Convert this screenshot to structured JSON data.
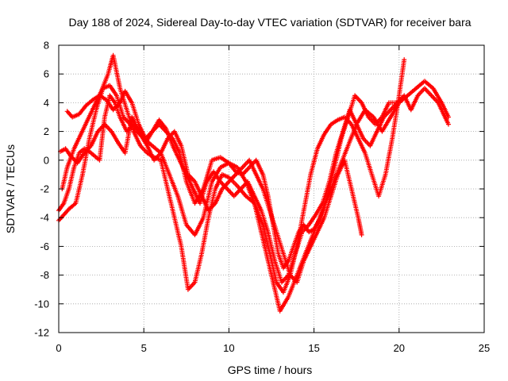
{
  "chart_data": {
    "type": "scatter",
    "title": "Day 188 of 2024, Sidereal Day-to-day VTEC variation (SDTVAR) for receiver bara",
    "xlabel": "GPS time / hours",
    "ylabel": "SDTVAR / TECUs",
    "xlim": [
      0,
      25
    ],
    "ylim": [
      -12,
      8
    ],
    "xticks": [
      0,
      5,
      10,
      15,
      20,
      25
    ],
    "yticks": [
      -12,
      -10,
      -8,
      -6,
      -4,
      -2,
      0,
      2,
      4,
      6,
      8
    ],
    "grid": true,
    "legend": "none",
    "marker": "plus",
    "series": [
      {
        "color": "#ff0000",
        "x": [
          0.0,
          0.3,
          0.6,
          1.0,
          1.4,
          1.8,
          2.2,
          2.6,
          3.0,
          3.4,
          3.8,
          4.2,
          4.6,
          5.0,
          5.5,
          6.0,
          6.5,
          7.0,
          7.5,
          8.0,
          8.5,
          9.0,
          9.5,
          10.0,
          10.5,
          11.0,
          11.5,
          12.0,
          12.5,
          13.0,
          13.5,
          14.0,
          14.5,
          15.0,
          15.5,
          16.0,
          16.5,
          17.0,
          17.5,
          18.0,
          18.5,
          19.0,
          19.5,
          20.0,
          20.5,
          21.0,
          21.5,
          22.0,
          22.5,
          22.9
        ],
        "y": [
          -4.2,
          -3.8,
          -3.4,
          -3.0,
          -1.0,
          1.5,
          3.5,
          5.0,
          5.2,
          4.5,
          3.0,
          2.5,
          2.0,
          1.5,
          1.0,
          0.5,
          -1.0,
          -2.5,
          -4.5,
          -5.2,
          -4.0,
          -1.5,
          -0.5,
          -0.2,
          -0.5,
          -1.5,
          -3.0,
          -5.5,
          -8.0,
          -10.5,
          -9.5,
          -8.0,
          -6.5,
          -5.0,
          -3.5,
          -2.0,
          -0.5,
          1.0,
          2.5,
          3.5,
          3.0,
          2.0,
          3.0,
          4.0,
          4.5,
          5.0,
          5.5,
          5.0,
          4.0,
          3.0
        ]
      },
      {
        "color": "#ff0000",
        "x": [
          0.2,
          0.5,
          0.9,
          1.3,
          1.7,
          2.1,
          2.5,
          2.9,
          3.2,
          3.6,
          4.0,
          4.4,
          4.8,
          5.2,
          5.6,
          6.0,
          6.4,
          6.8,
          7.2,
          7.6,
          8.0,
          8.4,
          8.8,
          9.2,
          9.6,
          10.0,
          10.5,
          11.0,
          11.5,
          12.0,
          12.4,
          12.8,
          13.2,
          13.6,
          14.0,
          14.4,
          14.8,
          15.2,
          15.6,
          16.0,
          16.4,
          16.8,
          17.2,
          17.6,
          18.0,
          18.4,
          18.8,
          19.2,
          19.6,
          20.0,
          20.3
        ],
        "y": [
          -2.0,
          -0.5,
          0.8,
          1.8,
          2.8,
          3.8,
          4.8,
          6.0,
          7.3,
          5.0,
          3.5,
          2.0,
          1.0,
          0.5,
          0.2,
          0.0,
          -2.0,
          -4.0,
          -6.0,
          -9.0,
          -8.5,
          -6.5,
          -4.0,
          -2.0,
          -1.0,
          -1.2,
          -1.8,
          -2.5,
          -3.0,
          -4.5,
          -6.5,
          -8.5,
          -9.2,
          -8.0,
          -6.0,
          -3.5,
          -1.0,
          0.8,
          1.8,
          2.5,
          2.8,
          3.0,
          2.5,
          1.5,
          0.5,
          -1.0,
          -2.5,
          -1.0,
          1.5,
          4.5,
          7.0
        ]
      },
      {
        "color": "#ff0000",
        "x": [
          0.5,
          0.8,
          1.2,
          1.6,
          2.0,
          2.4,
          2.8,
          3.2,
          3.6,
          3.9,
          4.3,
          4.7,
          5.1,
          5.5,
          5.9,
          6.3,
          6.7,
          7.1,
          7.5,
          8.0,
          8.5,
          9.0,
          9.5,
          10.0,
          10.4,
          10.8,
          11.2,
          11.6,
          12.0,
          12.3,
          12.6,
          12.9,
          13.2,
          13.5,
          13.8,
          14.1,
          14.4,
          14.7,
          15.0,
          15.4,
          15.8,
          16.2,
          16.6,
          17.0,
          17.4,
          17.8,
          18.2,
          18.6,
          19.0,
          19.4,
          19.8
        ],
        "y": [
          3.4,
          3.0,
          3.2,
          3.8,
          4.2,
          4.5,
          4.2,
          3.5,
          4.0,
          4.8,
          4.0,
          2.5,
          1.5,
          2.0,
          2.5,
          2.0,
          1.5,
          0.5,
          -1.5,
          -3.0,
          -2.0,
          0.0,
          0.2,
          -0.2,
          -0.8,
          -1.0,
          -0.5,
          0.0,
          -1.0,
          -2.5,
          -4.5,
          -6.5,
          -7.5,
          -7.0,
          -6.0,
          -5.0,
          -4.5,
          -5.0,
          -4.8,
          -4.0,
          -2.5,
          -0.5,
          1.5,
          3.0,
          4.5,
          4.0,
          3.0,
          2.5,
          3.0,
          4.0,
          4.0
        ]
      },
      {
        "color": "#ff0000",
        "x": [
          0.1,
          0.4,
          0.7,
          1.1,
          1.5,
          1.9,
          2.3,
          2.7,
          3.1,
          3.5,
          3.9,
          4.3,
          4.7,
          5.1,
          5.5,
          5.9,
          6.3,
          6.7,
          7.1,
          7.5,
          7.9,
          8.3,
          8.7,
          9.1,
          9.5,
          9.9,
          10.3,
          10.7,
          11.1,
          11.5,
          11.9,
          12.3,
          12.7,
          13.1,
          13.5,
          13.9,
          14.3,
          14.7,
          15.1,
          15.5,
          15.9,
          16.3,
          16.7,
          17.1,
          17.5,
          17.9,
          18.3,
          18.7,
          19.1,
          19.5,
          19.9,
          20.3,
          20.7,
          21.1,
          21.5,
          21.9,
          22.3,
          22.7,
          22.9
        ],
        "y": [
          0.6,
          0.8,
          0.3,
          -0.2,
          0.5,
          1.0,
          2.0,
          2.5,
          2.0,
          1.2,
          0.5,
          3.0,
          2.0,
          1.2,
          2.0,
          2.8,
          2.2,
          1.0,
          0.0,
          -1.0,
          -2.0,
          -3.0,
          -1.5,
          -0.8,
          -1.5,
          -2.0,
          -2.5,
          -2.0,
          -1.5,
          -2.5,
          -3.5,
          -5.0,
          -7.0,
          -8.5,
          -8.0,
          -6.5,
          -5.0,
          -4.5,
          -3.8,
          -3.0,
          -1.5,
          0.5,
          2.0,
          3.5,
          2.5,
          1.5,
          1.0,
          2.0,
          3.0,
          3.5,
          4.0,
          4.5,
          3.5,
          4.5,
          5.0,
          4.5,
          4.0,
          3.0,
          2.5
        ]
      },
      {
        "color": "#ff0000",
        "x": [
          0.0,
          0.3,
          0.6,
          0.9,
          1.2,
          1.5,
          1.8,
          2.1,
          2.4,
          2.7,
          3.0,
          3.3,
          3.6,
          4.0,
          4.4,
          4.8,
          5.2,
          5.6,
          6.0,
          6.4,
          6.8,
          7.2,
          7.6,
          8.0,
          8.4,
          8.8,
          9.2,
          9.6,
          10.0,
          10.4,
          10.8,
          11.2,
          11.6,
          12.0,
          12.4,
          12.8,
          13.2,
          13.6,
          14.0,
          14.4,
          14.8,
          15.2,
          15.6,
          16.0,
          16.4,
          16.8,
          17.2,
          17.6,
          17.8
        ],
        "y": [
          -3.5,
          -3.0,
          -2.0,
          -0.5,
          0.5,
          0.8,
          0.6,
          0.3,
          0.0,
          3.0,
          4.5,
          4.0,
          3.0,
          2.0,
          2.5,
          2.0,
          1.0,
          0.0,
          0.5,
          1.5,
          2.0,
          1.0,
          -1.0,
          -1.5,
          -2.5,
          -3.5,
          -3.0,
          -2.0,
          -1.5,
          -1.0,
          -0.5,
          0.0,
          -1.0,
          -2.0,
          -3.5,
          -5.0,
          -6.5,
          -8.0,
          -8.5,
          -7.0,
          -6.0,
          -5.0,
          -4.0,
          -2.5,
          -1.0,
          0.0,
          -2.0,
          -4.0,
          -5.2
        ]
      }
    ]
  }
}
